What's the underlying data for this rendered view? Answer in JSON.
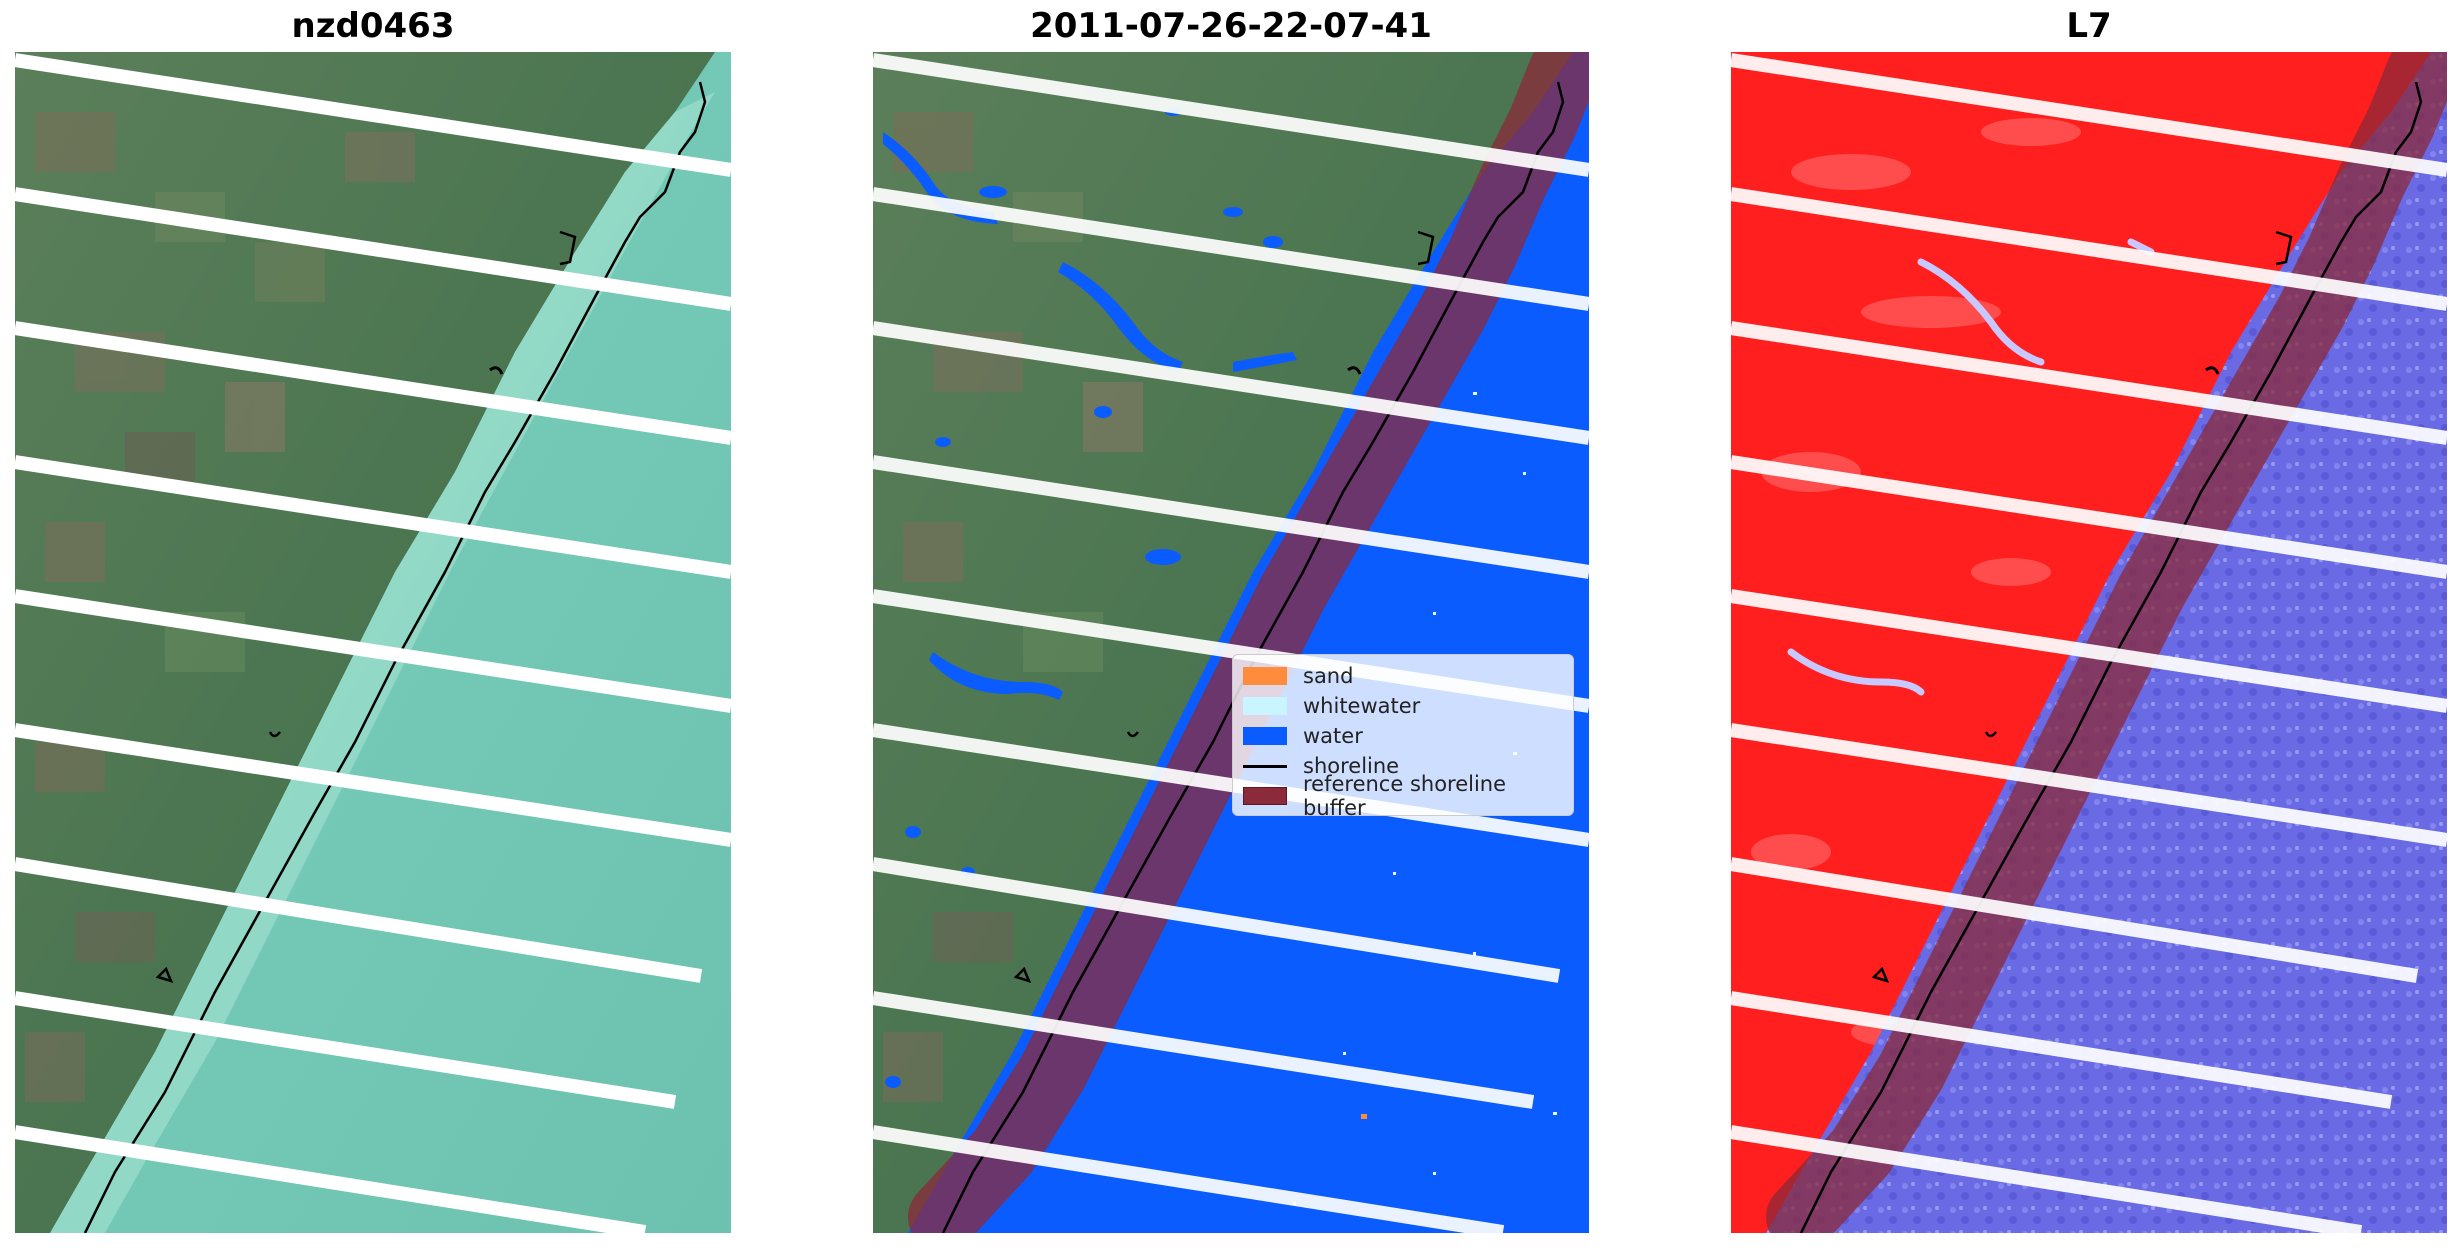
{
  "panels": [
    {
      "id": "rgb",
      "title": "nzd0463"
    },
    {
      "id": "classified",
      "title": "2011-07-26-22-07-41"
    },
    {
      "id": "mndwi",
      "title": "L7"
    }
  ],
  "legend": {
    "items": [
      {
        "label": "sand",
        "color": "#ff8c3c"
      },
      {
        "label": "whitewater",
        "color": "#c8f5ff"
      },
      {
        "label": "water",
        "color": "#0a5cff"
      },
      {
        "label": "shoreline",
        "color": "#000000"
      },
      {
        "label": "reference shoreline buffer",
        "color": "#8b2a3a"
      }
    ]
  },
  "colors": {
    "land_rgb": "#4f7a52",
    "sea_rgb": "#76ccb9",
    "water_class": "#0a5cff",
    "land_index": "#ff2222",
    "water_index": "#6868e6",
    "buffer": "#8b2a3a",
    "shoreline": "#000000",
    "scanline_gap": "#ffffff"
  }
}
